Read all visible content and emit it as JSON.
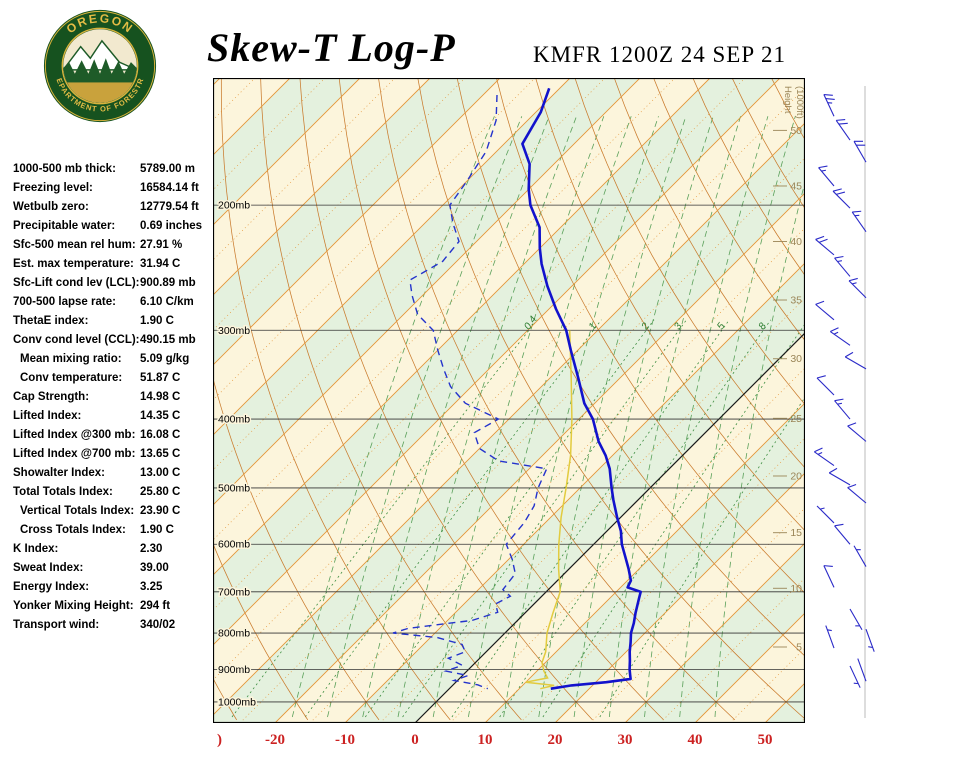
{
  "header": {
    "title": "Skew-T Log-P",
    "station": "KMFR 1200Z 24 SEP 21"
  },
  "logo": {
    "top": "OREGON",
    "bottom": "DEPARTMENT OF FORESTRY"
  },
  "indices": [
    {
      "label": "1000-500 mb thick:",
      "value": "5789.00 m",
      "indent": false
    },
    {
      "label": "Freezing level:",
      "value": "16584.14 ft",
      "indent": false
    },
    {
      "label": "Wetbulb zero:",
      "value": "12779.54 ft",
      "indent": false
    },
    {
      "label": "Precipitable water:",
      "value": "0.69 inches",
      "indent": false
    },
    {
      "label": "Sfc-500 mean rel hum:",
      "value": "27.91 %",
      "indent": false
    },
    {
      "label": "Est. max temperature:",
      "value": "31.94 C",
      "indent": false
    },
    {
      "label": "Sfc-Lift cond lev (LCL):",
      "value": "900.89 mb",
      "indent": false
    },
    {
      "label": "700-500 lapse rate:",
      "value": "6.10 C/km",
      "indent": false
    },
    {
      "label": "ThetaE index:",
      "value": "1.90 C",
      "indent": false
    },
    {
      "label": "Conv cond level (CCL):",
      "value": "490.15 mb",
      "indent": false
    },
    {
      "label": "Mean mixing ratio:",
      "value": "5.09 g/kg",
      "indent": true
    },
    {
      "label": "Conv temperature:",
      "value": "51.87 C",
      "indent": true
    },
    {
      "label": "Cap Strength:",
      "value": "14.98 C",
      "indent": false
    },
    {
      "label": "Lifted Index:",
      "value": "14.35 C",
      "indent": false
    },
    {
      "label": "Lifted Index @300 mb:",
      "value": "16.08 C",
      "indent": false
    },
    {
      "label": "Lifted Index @700 mb:",
      "value": "13.65 C",
      "indent": false
    },
    {
      "label": "Showalter Index:",
      "value": "13.00 C",
      "indent": false
    },
    {
      "label": "Total Totals Index:",
      "value": "25.80 C",
      "indent": false
    },
    {
      "label": "Vertical Totals Index:",
      "value": "23.90 C",
      "indent": true
    },
    {
      "label": "Cross Totals Index:",
      "value": "1.90 C",
      "indent": true
    },
    {
      "label": "K Index:",
      "value": "2.30",
      "indent": false
    },
    {
      "label": "Sweat Index:",
      "value": "39.00",
      "indent": false
    },
    {
      "label": "Energy Index:",
      "value": "3.25",
      "indent": false
    },
    {
      "label": "Yonker Mixing Height:",
      "value": "294 ft",
      "indent": false
    },
    {
      "label": "Transport wind:",
      "value": "340/02",
      "indent": false
    }
  ],
  "chart_data": {
    "type": "line",
    "title": "Skew-T Log-P",
    "station": "KMFR 1200Z 24 SEP 21",
    "x_axis": {
      "ticks": [
        -20,
        -10,
        0,
        10,
        20,
        30,
        40,
        50
      ],
      "partial_left_label": ")",
      "unit": "C"
    },
    "y_axis": {
      "scale": "log-pressure",
      "unit": "mb"
    },
    "pressure_levels": [
      {
        "label": "200mb",
        "p": 200
      },
      {
        "label": "300mb",
        "p": 300
      },
      {
        "label": "400mb",
        "p": 400
      },
      {
        "label": "500mb",
        "p": 500
      },
      {
        "label": "600mb",
        "p": 600
      },
      {
        "label": "700mb",
        "p": 700
      },
      {
        "label": "800mb",
        "p": 800
      },
      {
        "label": "900mb",
        "p": 900
      },
      {
        "label": "1000mb",
        "p": 1000
      }
    ],
    "isotherms_c": {
      "min": -120,
      "max": 60,
      "step": 10,
      "highlight_black": 0
    },
    "dry_adiabats_theta_c": [
      -30,
      -20,
      -10,
      0,
      10,
      20,
      30,
      40,
      50,
      60,
      70,
      80,
      90,
      100,
      110,
      120,
      130,
      140,
      150
    ],
    "moist_adiabats_thetaw_c": [
      -20,
      -15,
      -10,
      -5,
      0,
      5,
      10,
      15,
      20,
      25,
      30,
      35,
      40
    ],
    "mixing_ratio_gkg": [
      0.4,
      1,
      2,
      3,
      5,
      8,
      12,
      20
    ],
    "mixing_ratio_labeled": [
      0.4,
      1,
      2,
      3,
      5,
      8
    ],
    "height_scale": {
      "label": "Height",
      "label2": "(1000ft)",
      "marks": [
        {
          "label": "50",
          "p": 157
        },
        {
          "label": "45",
          "p": 188
        },
        {
          "label": "40",
          "p": 225
        },
        {
          "label": "35",
          "p": 272
        },
        {
          "label": "30",
          "p": 329
        },
        {
          "label": "25",
          "p": 399
        },
        {
          "label": "20",
          "p": 481
        },
        {
          "label": "15",
          "p": 578
        },
        {
          "label": "10",
          "p": 692
        },
        {
          "label": "5",
          "p": 837
        }
      ]
    },
    "temperature_trace_mb_c": [
      [
        137,
        -71.5
      ],
      [
        148,
        -69.3
      ],
      [
        164,
        -67.4
      ],
      [
        175,
        -63.5
      ],
      [
        190,
        -60
      ],
      [
        200,
        -57.5
      ],
      [
        215,
        -53
      ],
      [
        230,
        -50
      ],
      [
        242,
        -47.5
      ],
      [
        260,
        -43.5
      ],
      [
        280,
        -39
      ],
      [
        300,
        -34.5
      ],
      [
        320,
        -31
      ],
      [
        350,
        -26
      ],
      [
        380,
        -21.5
      ],
      [
        400,
        -18
      ],
      [
        430,
        -14
      ],
      [
        450,
        -11
      ],
      [
        470,
        -8.5
      ],
      [
        500,
        -5.5
      ],
      [
        520,
        -3.5
      ],
      [
        550,
        -0.5
      ],
      [
        575,
        2
      ],
      [
        600,
        4
      ],
      [
        625,
        6.3
      ],
      [
        650,
        8.5
      ],
      [
        675,
        10.5
      ],
      [
        690,
        11
      ],
      [
        700,
        13.5
      ],
      [
        715,
        14.2
      ],
      [
        750,
        15.8
      ],
      [
        775,
        17
      ],
      [
        800,
        18
      ],
      [
        825,
        19.3
      ],
      [
        850,
        20.5
      ],
      [
        875,
        21.8
      ],
      [
        900,
        23
      ],
      [
        915,
        23.8
      ],
      [
        928,
        24.5
      ],
      [
        938,
        21.5
      ],
      [
        948,
        17
      ],
      [
        958,
        14.5
      ]
    ],
    "dewpoint_trace_mb_c": [
      [
        140,
        -78
      ],
      [
        152,
        -74.5
      ],
      [
        168,
        -71.5
      ],
      [
        185,
        -70
      ],
      [
        200,
        -69
      ],
      [
        212,
        -66
      ],
      [
        225,
        -62.5
      ],
      [
        240,
        -62
      ],
      [
        255,
        -64
      ],
      [
        268,
        -61.5
      ],
      [
        285,
        -58
      ],
      [
        300,
        -53.5
      ],
      [
        320,
        -50
      ],
      [
        340,
        -46.5
      ],
      [
        360,
        -43
      ],
      [
        380,
        -38.5
      ],
      [
        400,
        -31.5
      ],
      [
        418,
        -33
      ],
      [
        440,
        -30
      ],
      [
        458,
        -25.5
      ],
      [
        470,
        -17.5
      ],
      [
        500,
        -16
      ],
      [
        530,
        -14
      ],
      [
        560,
        -13
      ],
      [
        600,
        -12.5
      ],
      [
        630,
        -9.5
      ],
      [
        660,
        -7
      ],
      [
        695,
        -6.5
      ],
      [
        710,
        -4.5
      ],
      [
        728,
        -5.5
      ],
      [
        748,
        -4
      ],
      [
        768,
        -6.5
      ],
      [
        788,
        -14.5
      ],
      [
        800,
        -16
      ],
      [
        812,
        -9
      ],
      [
        830,
        -4.5
      ],
      [
        850,
        -3
      ],
      [
        868,
        -4.5
      ],
      [
        888,
        -1.5
      ],
      [
        905,
        -3
      ],
      [
        918,
        0.8
      ],
      [
        933,
        -0.5
      ],
      [
        946,
        3.5
      ],
      [
        958,
        5.5
      ]
    ],
    "wetbulb_trace_mb_c": [
      [
        300,
        -34
      ],
      [
        350,
        -27
      ],
      [
        400,
        -21
      ],
      [
        450,
        -16
      ],
      [
        500,
        -12
      ],
      [
        550,
        -8.5
      ],
      [
        600,
        -5
      ],
      [
        650,
        -1.5
      ],
      [
        700,
        2
      ],
      [
        750,
        4
      ],
      [
        800,
        6
      ],
      [
        850,
        8.5
      ],
      [
        880,
        9.5
      ],
      [
        905,
        11
      ],
      [
        925,
        12.5
      ],
      [
        938,
        10
      ],
      [
        948,
        14.5
      ],
      [
        958,
        13
      ]
    ],
    "wind_barbs": [
      {
        "p": 150,
        "dir": 335,
        "spd": 25
      },
      {
        "p": 162,
        "dir": 325,
        "spd": 20
      },
      {
        "p": 174,
        "dir": 330,
        "spd": 20
      },
      {
        "p": 188,
        "dir": 320,
        "spd": 15
      },
      {
        "p": 202,
        "dir": 315,
        "spd": 20
      },
      {
        "p": 218,
        "dir": 325,
        "spd": 15
      },
      {
        "p": 235,
        "dir": 310,
        "spd": 20
      },
      {
        "p": 252,
        "dir": 320,
        "spd": 15
      },
      {
        "p": 270,
        "dir": 315,
        "spd": 15
      },
      {
        "p": 290,
        "dir": 310,
        "spd": 10
      },
      {
        "p": 315,
        "dir": 305,
        "spd": 15
      },
      {
        "p": 340,
        "dir": 300,
        "spd": 10
      },
      {
        "p": 370,
        "dir": 315,
        "spd": 10
      },
      {
        "p": 400,
        "dir": 320,
        "spd": 15
      },
      {
        "p": 430,
        "dir": 310,
        "spd": 10
      },
      {
        "p": 465,
        "dir": 305,
        "spd": 15
      },
      {
        "p": 495,
        "dir": 300,
        "spd": 10
      },
      {
        "p": 525,
        "dir": 310,
        "spd": 10
      },
      {
        "p": 560,
        "dir": 315,
        "spd": 5
      },
      {
        "p": 600,
        "dir": 320,
        "spd": 10
      },
      {
        "p": 645,
        "dir": 330,
        "spd": 5
      },
      {
        "p": 690,
        "dir": 335,
        "spd": 10
      },
      {
        "p": 740,
        "dir": 150,
        "spd": 5
      },
      {
        "p": 790,
        "dir": 160,
        "spd": 5
      },
      {
        "p": 840,
        "dir": 340,
        "spd": 5
      },
      {
        "p": 890,
        "dir": 155,
        "spd": 5
      },
      {
        "p": 935,
        "dir": 340,
        "spd": 2
      }
    ],
    "colors": {
      "bg": "#FCF5DC",
      "band": "#E4F1DE",
      "isotherm": "#E59638",
      "dry": "#C97B2D",
      "moist": "#5AA05A",
      "mixing": "#3E8E41",
      "mixing_label": "#2E7D32",
      "zero_line": "#1A1A1A",
      "pressure_line": "#333333",
      "height": "#9A8557",
      "temp": "#1212CC",
      "dew": "#2433CC",
      "wetbulb": "#E2CB3E",
      "barb": "#2A2AC8",
      "axis": "#CC2222"
    }
  }
}
